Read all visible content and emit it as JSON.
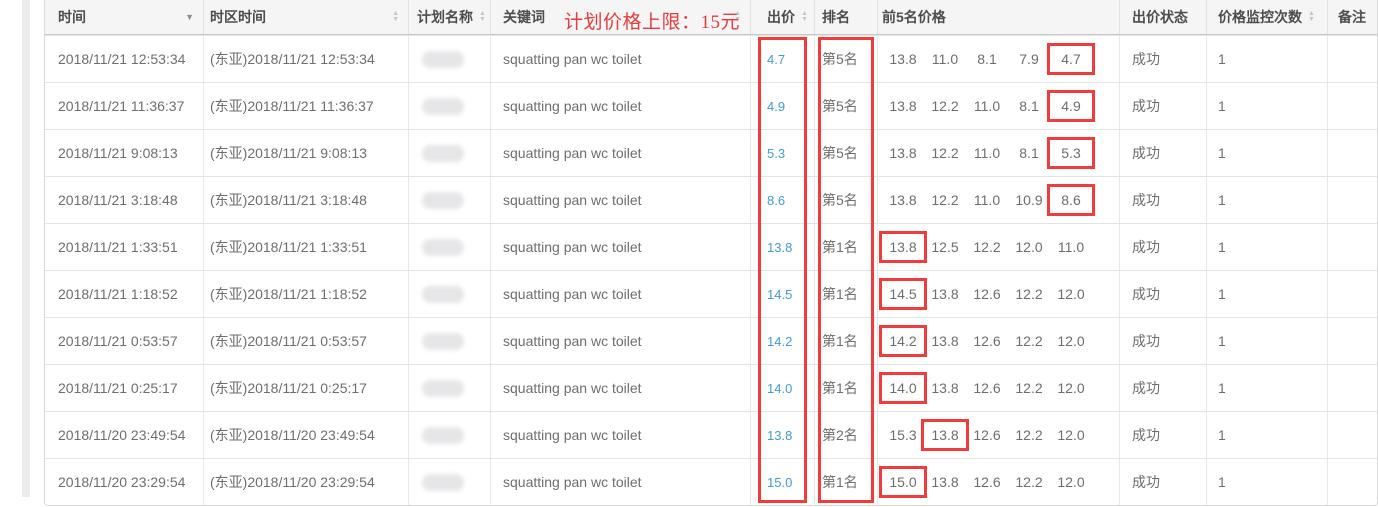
{
  "annotation": {
    "price_cap": "计划价格上限：15元"
  },
  "colors": {
    "accent_red": "#f23c3c",
    "link_blue": "#3f9dd8"
  },
  "table": {
    "columns": [
      {
        "key": "time",
        "label": "时间",
        "sort": "desc",
        "icon_pos": "end"
      },
      {
        "key": "tz_time",
        "label": "时区时间",
        "sort": "both",
        "icon_pos": "end"
      },
      {
        "key": "plan",
        "label": "计划名称",
        "sort": "both",
        "icon_pos": "after"
      },
      {
        "key": "keyword",
        "label": "关键词",
        "sort": "both",
        "icon_pos": "end"
      },
      {
        "key": "bid",
        "label": "出价",
        "sort": "both",
        "icon_pos": "after"
      },
      {
        "key": "rank",
        "label": "排名",
        "sort": null,
        "icon_pos": null
      },
      {
        "key": "prices",
        "label": "前5名价格",
        "sort": null,
        "icon_pos": null
      },
      {
        "key": "status",
        "label": "出价状态",
        "sort": null,
        "icon_pos": null
      },
      {
        "key": "count",
        "label": "价格监控次数",
        "sort": "both",
        "icon_pos": "after"
      },
      {
        "key": "remark",
        "label": "备注",
        "sort": null,
        "icon_pos": null
      }
    ],
    "highlight_boxes": {
      "bid_column": true,
      "rank_column": true
    },
    "rows": [
      {
        "time": "2018/11/21 12:53:34",
        "tz_time": "(东亚)2018/11/21 12:53:34",
        "keyword": "squatting pan wc toilet",
        "bid": "4.7",
        "rank": "第5名",
        "prices": [
          "13.8",
          "11.0",
          "8.1",
          "7.9",
          "4.7"
        ],
        "highlight": 4,
        "status": "成功",
        "count": "1",
        "remark": ""
      },
      {
        "time": "2018/11/21 11:36:37",
        "tz_time": "(东亚)2018/11/21 11:36:37",
        "keyword": "squatting pan wc toilet",
        "bid": "4.9",
        "rank": "第5名",
        "prices": [
          "13.8",
          "12.2",
          "11.0",
          "8.1",
          "4.9"
        ],
        "highlight": 4,
        "status": "成功",
        "count": "1",
        "remark": ""
      },
      {
        "time": "2018/11/21 9:08:13",
        "tz_time": "(东亚)2018/11/21 9:08:13",
        "keyword": "squatting pan wc toilet",
        "bid": "5.3",
        "rank": "第5名",
        "prices": [
          "13.8",
          "12.2",
          "11.0",
          "8.1",
          "5.3"
        ],
        "highlight": 4,
        "status": "成功",
        "count": "1",
        "remark": ""
      },
      {
        "time": "2018/11/21 3:18:48",
        "tz_time": "(东亚)2018/11/21 3:18:48",
        "keyword": "squatting pan wc toilet",
        "bid": "8.6",
        "rank": "第5名",
        "prices": [
          "13.8",
          "12.2",
          "11.0",
          "10.9",
          "8.6"
        ],
        "highlight": 4,
        "status": "成功",
        "count": "1",
        "remark": ""
      },
      {
        "time": "2018/11/21 1:33:51",
        "tz_time": "(东亚)2018/11/21 1:33:51",
        "keyword": "squatting pan wc toilet",
        "bid": "13.8",
        "rank": "第1名",
        "prices": [
          "13.8",
          "12.5",
          "12.2",
          "12.0",
          "11.0"
        ],
        "highlight": 0,
        "status": "成功",
        "count": "1",
        "remark": ""
      },
      {
        "time": "2018/11/21 1:18:52",
        "tz_time": "(东亚)2018/11/21 1:18:52",
        "keyword": "squatting pan wc toilet",
        "bid": "14.5",
        "rank": "第1名",
        "prices": [
          "14.5",
          "13.8",
          "12.6",
          "12.2",
          "12.0"
        ],
        "highlight": 0,
        "status": "成功",
        "count": "1",
        "remark": ""
      },
      {
        "time": "2018/11/21 0:53:57",
        "tz_time": "(东亚)2018/11/21 0:53:57",
        "keyword": "squatting pan wc toilet",
        "bid": "14.2",
        "rank": "第1名",
        "prices": [
          "14.2",
          "13.8",
          "12.6",
          "12.2",
          "12.0"
        ],
        "highlight": 0,
        "status": "成功",
        "count": "1",
        "remark": ""
      },
      {
        "time": "2018/11/21 0:25:17",
        "tz_time": "(东亚)2018/11/21 0:25:17",
        "keyword": "squatting pan wc toilet",
        "bid": "14.0",
        "rank": "第1名",
        "prices": [
          "14.0",
          "13.8",
          "12.6",
          "12.2",
          "12.0"
        ],
        "highlight": 0,
        "status": "成功",
        "count": "1",
        "remark": ""
      },
      {
        "time": "2018/11/20 23:49:54",
        "tz_time": "(东亚)2018/11/20 23:49:54",
        "keyword": "squatting pan wc toilet",
        "bid": "13.8",
        "rank": "第2名",
        "prices": [
          "15.3",
          "13.8",
          "12.6",
          "12.2",
          "12.0"
        ],
        "highlight": 1,
        "status": "成功",
        "count": "1",
        "remark": ""
      },
      {
        "time": "2018/11/20 23:29:54",
        "tz_time": "(东亚)2018/11/20 23:29:54",
        "keyword": "squatting pan wc toilet",
        "bid": "15.0",
        "rank": "第1名",
        "prices": [
          "15.0",
          "13.8",
          "12.6",
          "12.2",
          "12.0"
        ],
        "highlight": 0,
        "status": "成功",
        "count": "1",
        "remark": ""
      }
    ]
  }
}
